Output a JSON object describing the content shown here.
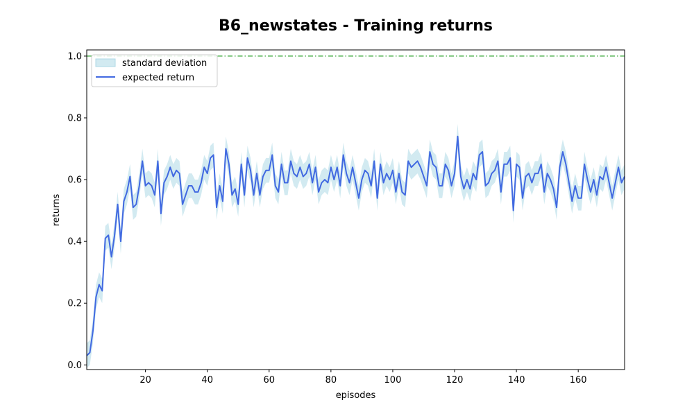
{
  "chart_data": {
    "type": "line",
    "title": "B6_newstates - Training returns",
    "xlabel": "episodes",
    "ylabel": "returns",
    "xlim": [
      1,
      175
    ],
    "ylim": [
      -0.015,
      1.02
    ],
    "xticks": [
      20,
      40,
      60,
      80,
      100,
      120,
      140,
      160
    ],
    "yticks": [
      0.0,
      0.2,
      0.4,
      0.6,
      0.8,
      1.0
    ],
    "ytick_labels": [
      "0.0",
      "0.2",
      "0.4",
      "0.6",
      "0.8",
      "1.0"
    ],
    "legend_position": "top-left",
    "grid": false,
    "reference_line": {
      "y": 1.0,
      "style": "dash-dot",
      "color": "#2ca02c"
    },
    "series": [
      {
        "name": "expected return",
        "kind": "line",
        "color": "#4169e1",
        "x": [
          1,
          2,
          3,
          4,
          5,
          6,
          7,
          8,
          9,
          10,
          11,
          12,
          13,
          14,
          15,
          16,
          17,
          18,
          19,
          20,
          21,
          22,
          23,
          24,
          25,
          26,
          27,
          28,
          29,
          30,
          31,
          32,
          33,
          34,
          35,
          36,
          37,
          38,
          39,
          40,
          41,
          42,
          43,
          44,
          45,
          46,
          47,
          48,
          49,
          50,
          51,
          52,
          53,
          54,
          55,
          56,
          57,
          58,
          59,
          60,
          61,
          62,
          63,
          64,
          65,
          66,
          67,
          68,
          69,
          70,
          71,
          72,
          73,
          74,
          75,
          76,
          77,
          78,
          79,
          80,
          81,
          82,
          83,
          84,
          85,
          86,
          87,
          88,
          89,
          90,
          91,
          92,
          93,
          94,
          95,
          96,
          97,
          98,
          99,
          100,
          101,
          102,
          103,
          104,
          105,
          106,
          107,
          108,
          109,
          110,
          111,
          112,
          113,
          114,
          115,
          116,
          117,
          118,
          119,
          120,
          121,
          122,
          123,
          124,
          125,
          126,
          127,
          128,
          129,
          130,
          131,
          132,
          133,
          134,
          135,
          136,
          137,
          138,
          139,
          140,
          141,
          142,
          143,
          144,
          145,
          146,
          147,
          148,
          149,
          150,
          151,
          152,
          153,
          154,
          155,
          156,
          157,
          158,
          159,
          160,
          161,
          162,
          163,
          164,
          165,
          166,
          167,
          168,
          169,
          170,
          171,
          172,
          173,
          174,
          175
        ],
        "values": [
          0.03,
          0.04,
          0.11,
          0.22,
          0.26,
          0.24,
          0.41,
          0.42,
          0.35,
          0.42,
          0.52,
          0.4,
          0.53,
          0.56,
          0.61,
          0.51,
          0.52,
          0.58,
          0.66,
          0.58,
          0.59,
          0.58,
          0.55,
          0.66,
          0.49,
          0.59,
          0.61,
          0.64,
          0.61,
          0.63,
          0.62,
          0.52,
          0.55,
          0.58,
          0.58,
          0.56,
          0.56,
          0.59,
          0.64,
          0.62,
          0.67,
          0.68,
          0.51,
          0.58,
          0.53,
          0.7,
          0.65,
          0.55,
          0.57,
          0.52,
          0.65,
          0.55,
          0.67,
          0.63,
          0.55,
          0.62,
          0.55,
          0.61,
          0.63,
          0.63,
          0.68,
          0.58,
          0.56,
          0.65,
          0.59,
          0.59,
          0.66,
          0.62,
          0.61,
          0.64,
          0.61,
          0.62,
          0.65,
          0.59,
          0.64,
          0.56,
          0.59,
          0.6,
          0.59,
          0.64,
          0.6,
          0.64,
          0.58,
          0.68,
          0.62,
          0.59,
          0.64,
          0.59,
          0.54,
          0.6,
          0.63,
          0.62,
          0.58,
          0.66,
          0.54,
          0.65,
          0.59,
          0.62,
          0.6,
          0.63,
          0.56,
          0.62,
          0.56,
          0.55,
          0.66,
          0.64,
          0.65,
          0.66,
          0.64,
          0.61,
          0.58,
          0.69,
          0.65,
          0.64,
          0.58,
          0.58,
          0.65,
          0.63,
          0.58,
          0.62,
          0.74,
          0.61,
          0.57,
          0.6,
          0.57,
          0.62,
          0.6,
          0.68,
          0.69,
          0.58,
          0.59,
          0.62,
          0.63,
          0.66,
          0.56,
          0.65,
          0.65,
          0.67,
          0.5,
          0.65,
          0.64,
          0.54,
          0.61,
          0.62,
          0.59,
          0.62,
          0.62,
          0.65,
          0.56,
          0.62,
          0.6,
          0.57,
          0.51,
          0.64,
          0.69,
          0.65,
          0.59,
          0.53,
          0.58,
          0.54,
          0.54,
          0.65,
          0.6,
          0.56,
          0.6,
          0.55,
          0.61,
          0.6,
          0.64,
          0.59,
          0.54,
          0.59,
          0.64,
          0.59,
          0.61
        ]
      },
      {
        "name": "standard deviation",
        "kind": "band",
        "color": "#add8e6",
        "half_width": 0.04
      }
    ]
  }
}
